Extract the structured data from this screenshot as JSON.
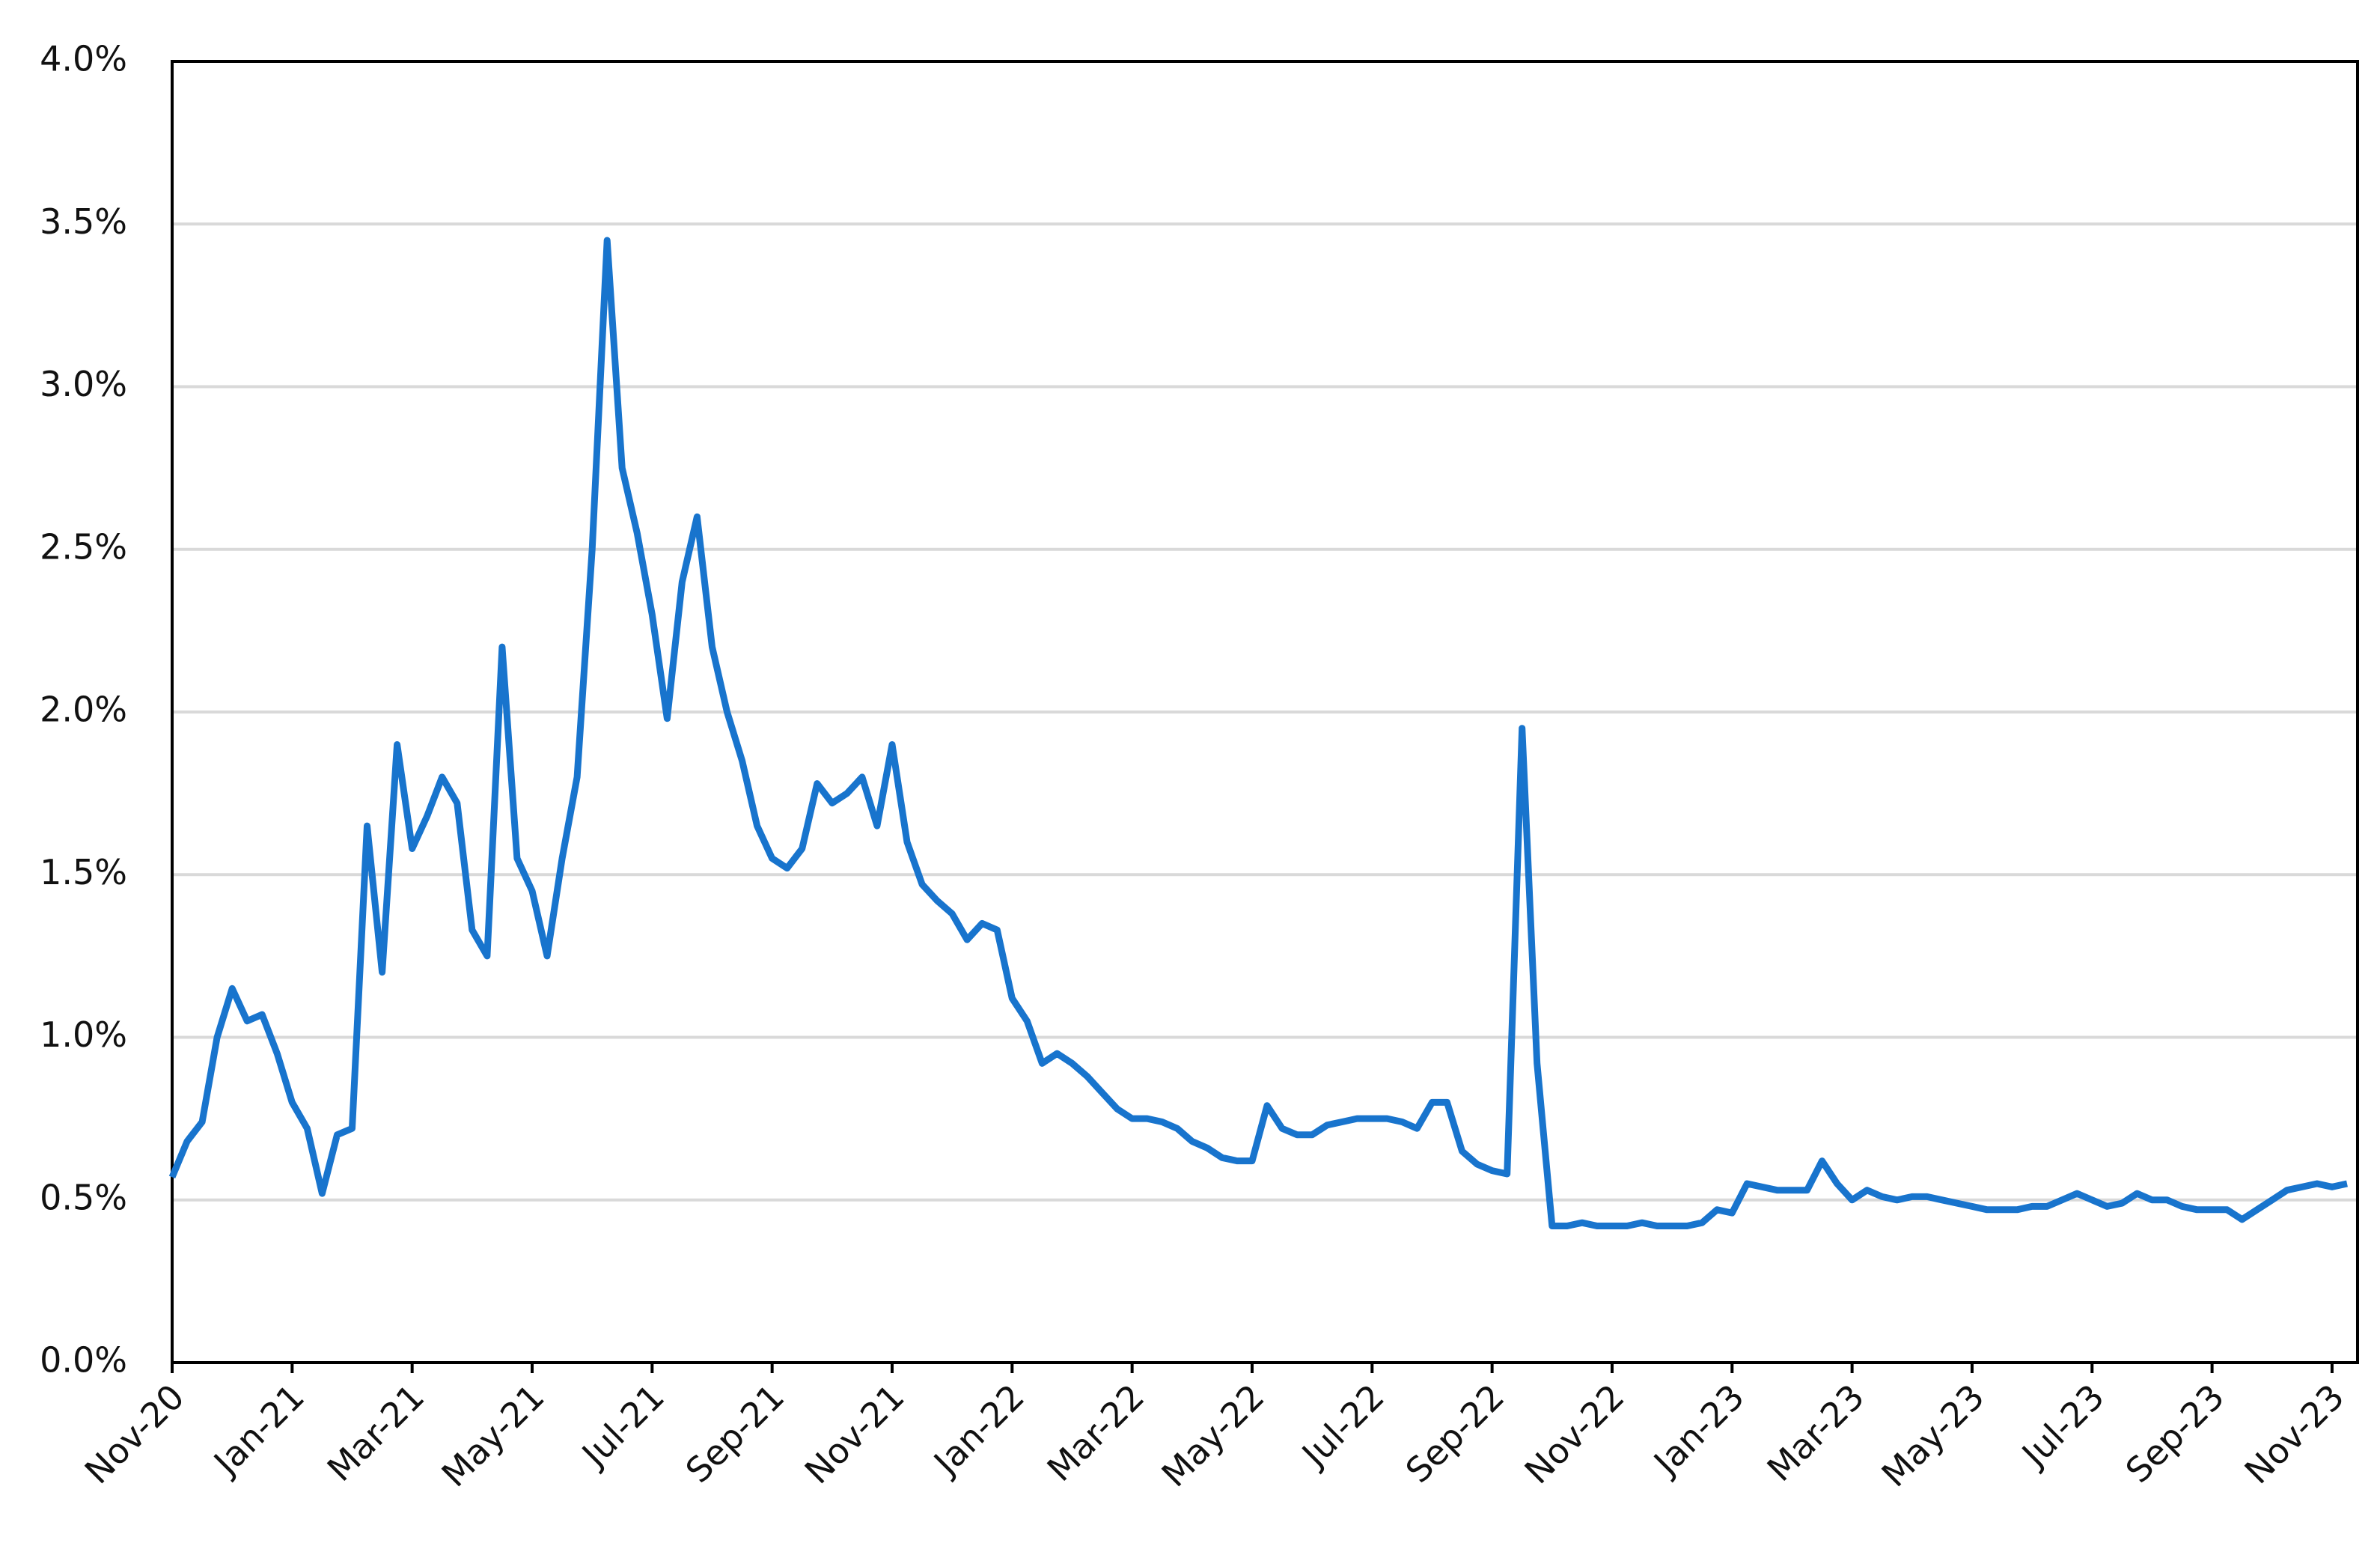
{
  "chart_data": {
    "type": "line",
    "categories": [
      "Nov-20",
      null,
      null,
      null,
      null,
      null,
      null,
      null,
      "Jan-21",
      null,
      null,
      null,
      null,
      null,
      null,
      null,
      "Mar-21",
      null,
      null,
      null,
      null,
      null,
      null,
      null,
      "May-21",
      null,
      null,
      null,
      null,
      null,
      null,
      null,
      "Jul-21",
      null,
      null,
      null,
      null,
      null,
      null,
      null,
      "Sep-21",
      null,
      null,
      null,
      null,
      null,
      null,
      null,
      "Nov-21",
      null,
      null,
      null,
      null,
      null,
      null,
      null,
      "Jan-22",
      null,
      null,
      null,
      null,
      null,
      null,
      null,
      "Mar-22",
      null,
      null,
      null,
      null,
      null,
      null,
      null,
      "May-22",
      null,
      null,
      null,
      null,
      null,
      null,
      null,
      "Jul-22",
      null,
      null,
      null,
      null,
      null,
      null,
      null,
      "Sep-22",
      null,
      null,
      null,
      null,
      null,
      null,
      null,
      "Nov-22",
      null,
      null,
      null,
      null,
      null,
      null,
      null,
      "Jan-23",
      null,
      null,
      null,
      null,
      null,
      null,
      null,
      "Mar-23",
      null,
      null,
      null,
      null,
      null,
      null,
      null,
      "May-23",
      null,
      null,
      null,
      null,
      null,
      null,
      null,
      "Jul-23",
      null,
      null,
      null,
      null,
      null,
      null,
      null,
      "Sep-23",
      null,
      null,
      null,
      null,
      null,
      null,
      null,
      "Nov-23",
      null
    ],
    "values": [
      0.57,
      0.68,
      0.74,
      1.0,
      1.15,
      1.05,
      1.07,
      0.95,
      0.8,
      0.72,
      0.52,
      0.7,
      0.72,
      1.65,
      1.2,
      1.9,
      1.58,
      1.68,
      1.8,
      1.72,
      1.33,
      1.25,
      2.2,
      1.55,
      1.45,
      1.25,
      1.55,
      1.8,
      2.5,
      3.45,
      2.75,
      2.55,
      2.3,
      1.98,
      2.4,
      2.6,
      2.2,
      2.0,
      1.85,
      1.65,
      1.55,
      1.52,
      1.58,
      1.78,
      1.72,
      1.75,
      1.8,
      1.65,
      1.9,
      1.6,
      1.47,
      1.42,
      1.38,
      1.3,
      1.35,
      1.33,
      1.12,
      1.05,
      0.92,
      0.95,
      0.92,
      0.88,
      0.83,
      0.78,
      0.75,
      0.75,
      0.74,
      0.72,
      0.68,
      0.66,
      0.63,
      0.62,
      0.62,
      0.79,
      0.72,
      0.7,
      0.7,
      0.73,
      0.74,
      0.75,
      0.75,
      0.75,
      0.74,
      0.72,
      0.8,
      0.8,
      0.65,
      0.61,
      0.59,
      0.58,
      1.95,
      0.92,
      0.42,
      0.42,
      0.43,
      0.42,
      0.42,
      0.42,
      0.43,
      0.42,
      0.42,
      0.42,
      0.43,
      0.47,
      0.46,
      0.55,
      0.54,
      0.53,
      0.53,
      0.53,
      0.62,
      0.55,
      0.5,
      0.53,
      0.51,
      0.5,
      0.51,
      0.51,
      0.5,
      0.49,
      0.48,
      0.47,
      0.47,
      0.47,
      0.48,
      0.48,
      0.5,
      0.52,
      0.5,
      0.48,
      0.49,
      0.52,
      0.5,
      0.5,
      0.48,
      0.47,
      0.47,
      0.47,
      0.44,
      0.47,
      0.5,
      0.53,
      0.54,
      0.55,
      0.54,
      0.55
    ],
    "color": "#1874cd",
    "ylim": [
      0,
      4
    ],
    "yticks": [
      {
        "value": 0,
        "label": "0.0%"
      },
      {
        "value": 0.5,
        "label": "0.5%"
      },
      {
        "value": 1,
        "label": "1.0%"
      },
      {
        "value": 1.5,
        "label": "1.5%"
      },
      {
        "value": 2,
        "label": "2.0%"
      },
      {
        "value": 2.5,
        "label": "2.5%"
      },
      {
        "value": 3,
        "label": "3.0%"
      },
      {
        "value": 3.5,
        "label": "3.5%"
      },
      {
        "value": 4,
        "label": "4.0%"
      }
    ],
    "grid": true
  }
}
